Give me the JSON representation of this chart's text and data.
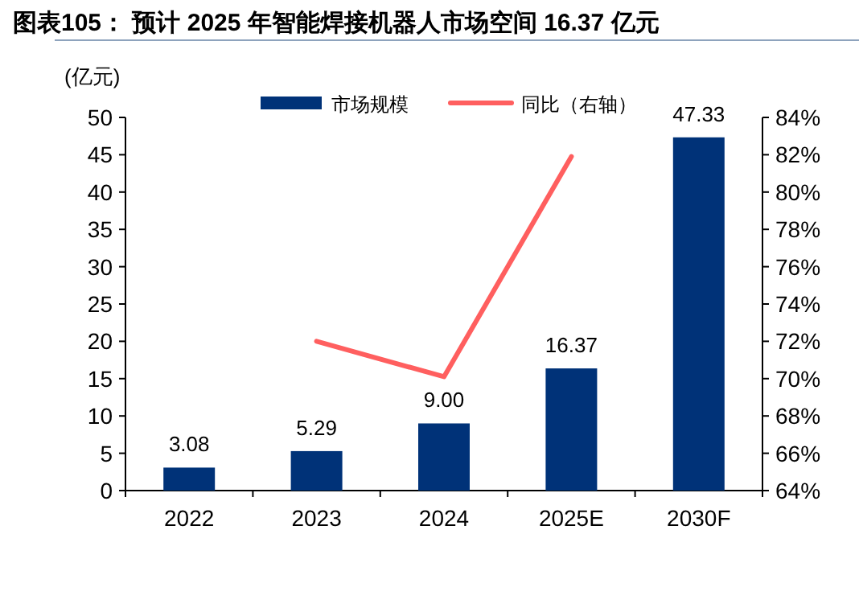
{
  "chart_data": {
    "type": "bar",
    "title": "图表105：  预计 2025 年智能焊接机器人市场空间 16.37 亿元",
    "ylabel": "(亿元)",
    "categories": [
      "2022",
      "2023",
      "2024",
      "2025E",
      "2030F"
    ],
    "series": [
      {
        "name": "市场规模",
        "color": "#003278",
        "values": [
          3.08,
          5.29,
          9.0,
          16.37,
          47.33
        ],
        "value_labels": [
          "3.08",
          "5.29",
          "9.00",
          "16.37",
          "47.33"
        ]
      },
      {
        "name": "同比（右轴）",
        "type": "line",
        "axis": "y2",
        "color": "#ff5f5f",
        "values": [
          null,
          72.0,
          70.1,
          81.9,
          null
        ]
      }
    ],
    "ylim": [
      0,
      50
    ],
    "yticks": [
      0,
      5,
      10,
      15,
      20,
      25,
      30,
      35,
      40,
      45,
      50
    ],
    "y2lim": [
      64,
      84
    ],
    "y2ticks": [
      {
        "value": 64,
        "label": "64%"
      },
      {
        "value": 66,
        "label": "66%"
      },
      {
        "value": 68,
        "label": "68%"
      },
      {
        "value": 70,
        "label": "70%"
      },
      {
        "value": 72,
        "label": "72%"
      },
      {
        "value": 74,
        "label": "74%"
      },
      {
        "value": 76,
        "label": "76%"
      },
      {
        "value": 78,
        "label": "78%"
      },
      {
        "value": 80,
        "label": "80%"
      },
      {
        "value": 82,
        "label": "82%"
      },
      {
        "value": 84,
        "label": "84%"
      }
    ],
    "legend": "top",
    "grid": false
  }
}
